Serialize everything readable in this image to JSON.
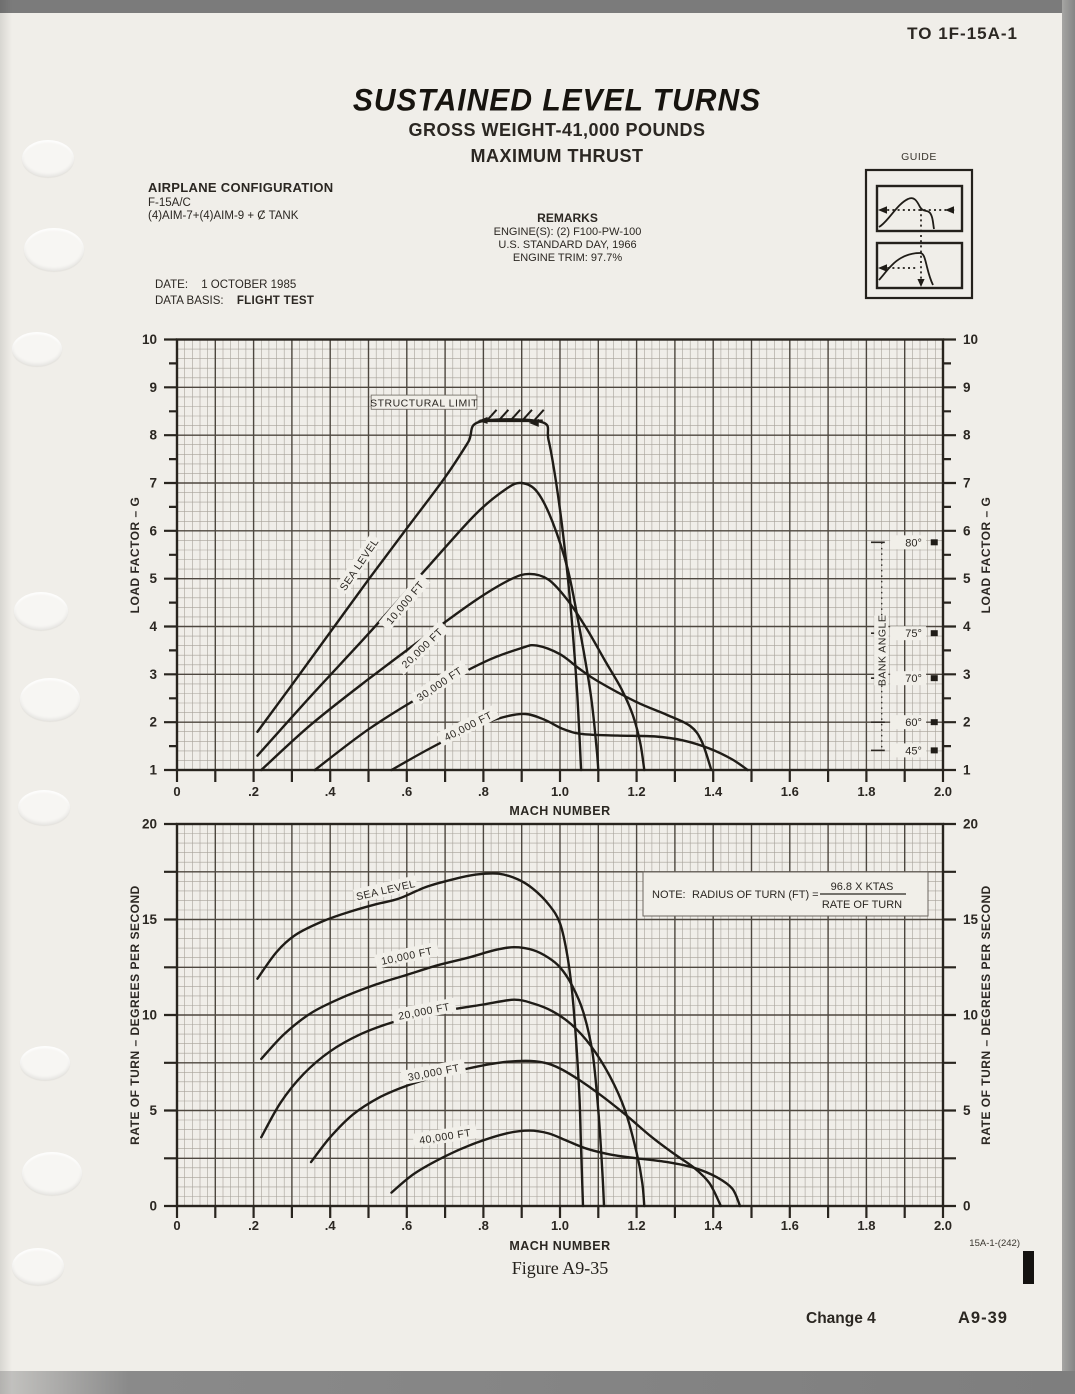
{
  "page": {
    "doc_number": "TO 1F-15A-1",
    "title": "SUSTAINED LEVEL TURNS",
    "subtitle1": "GROSS WEIGHT-41,000 POUNDS",
    "subtitle2": "MAXIMUM THRUST",
    "figure_caption": "Figure A9-35",
    "sheet_number": "15A-1-(242)",
    "change_label": "Change 4",
    "page_number": "A9-39"
  },
  "configuration": {
    "heading": "AIRPLANE CONFIGURATION",
    "aircraft": "F-15A/C",
    "stores": "(4)AIM-7+(4)AIM-9 + Ȼ TANK",
    "date_label": "DATE:",
    "date_value": "1 OCTOBER 1985",
    "data_basis_label": "DATA BASIS:",
    "data_basis_value": "FLIGHT TEST"
  },
  "remarks": {
    "heading": "REMARKS",
    "lines": [
      "ENGINE(S):   (2) F100-PW-100",
      "U.S. STANDARD DAY, 1966",
      "ENGINE TRIM:   97.7%"
    ]
  },
  "guide": {
    "label": "GUIDE"
  },
  "chart_data": [
    {
      "type": "line",
      "title": "Sustained level turns - load factor vs mach number",
      "xlabel": "MACH NUMBER",
      "ylabel": "LOAD FACTOR – G",
      "xlim": [
        0,
        2.0
      ],
      "ylim": [
        1,
        10
      ],
      "x_ticks": [
        0,
        0.2,
        0.4,
        0.6,
        0.8,
        1.0,
        1.2,
        1.4,
        1.6,
        1.8,
        2.0
      ],
      "x_tick_labels": [
        "0",
        ".2",
        ".4",
        ".6",
        ".8",
        "1.0",
        "1.2",
        "1.4",
        "1.6",
        "1.8",
        "2.0"
      ],
      "y_tick_labels": [
        "1",
        "2",
        "3",
        "4",
        "5",
        "6",
        "7",
        "8",
        "9",
        "10"
      ],
      "grid": "graph-paper, minor 0.02 mach / 0.2 g, major 0.1 mach / 1 g",
      "legend_position": "labels on curves",
      "series": [
        {
          "name": "SEA LEVEL",
          "label_at": [
            0.475,
            5.3
          ],
          "label_angle": -56,
          "points": [
            [
              0.21,
              1.8
            ],
            [
              0.3,
              2.78
            ],
            [
              0.4,
              3.88
            ],
            [
              0.5,
              4.98
            ],
            [
              0.6,
              6.05
            ],
            [
              0.7,
              7.12
            ],
            [
              0.76,
              7.85
            ],
            [
              0.79,
              8.28
            ],
            [
              0.95,
              8.28
            ],
            [
              0.97,
              7.9
            ],
            [
              0.99,
              7.0
            ],
            [
              1.01,
              5.8
            ],
            [
              1.03,
              4.2
            ],
            [
              1.045,
              2.6
            ],
            [
              1.055,
              1.0
            ]
          ]
        },
        {
          "name": "10,000 FT",
          "label_at": [
            0.595,
            4.5
          ],
          "label_angle": -50,
          "points": [
            [
              0.21,
              1.3
            ],
            [
              0.35,
              2.55
            ],
            [
              0.5,
              3.85
            ],
            [
              0.65,
              5.2
            ],
            [
              0.78,
              6.35
            ],
            [
              0.86,
              6.88
            ],
            [
              0.9,
              7.0
            ],
            [
              0.94,
              6.82
            ],
            [
              0.98,
              6.2
            ],
            [
              1.02,
              5.2
            ],
            [
              1.05,
              4.0
            ],
            [
              1.08,
              2.6
            ],
            [
              1.095,
              1.5
            ],
            [
              1.1,
              1.0
            ]
          ]
        },
        {
          "name": "20,000 FT",
          "label_at": [
            0.64,
            3.55
          ],
          "label_angle": -44,
          "points": [
            [
              0.22,
              1.0
            ],
            [
              0.35,
              1.95
            ],
            [
              0.5,
              2.9
            ],
            [
              0.65,
              3.8
            ],
            [
              0.78,
              4.55
            ],
            [
              0.87,
              4.98
            ],
            [
              0.92,
              5.1
            ],
            [
              0.97,
              4.98
            ],
            [
              1.02,
              4.55
            ],
            [
              1.07,
              3.95
            ],
            [
              1.12,
              3.25
            ],
            [
              1.16,
              2.7
            ],
            [
              1.19,
              2.15
            ],
            [
              1.21,
              1.55
            ],
            [
              1.22,
              1.0
            ]
          ]
        },
        {
          "name": "30,000 FT",
          "label_at": [
            0.685,
            2.8
          ],
          "label_angle": -34,
          "points": [
            [
              0.36,
              1.0
            ],
            [
              0.5,
              1.85
            ],
            [
              0.65,
              2.6
            ],
            [
              0.8,
              3.25
            ],
            [
              0.9,
              3.55
            ],
            [
              0.94,
              3.6
            ],
            [
              1.0,
              3.42
            ],
            [
              1.05,
              3.12
            ],
            [
              1.1,
              2.85
            ],
            [
              1.2,
              2.42
            ],
            [
              1.28,
              2.15
            ],
            [
              1.34,
              1.92
            ],
            [
              1.37,
              1.6
            ],
            [
              1.395,
              1.0
            ]
          ]
        },
        {
          "name": "40,000 FT",
          "label_at": [
            0.76,
            1.92
          ],
          "label_angle": -27,
          "points": [
            [
              0.56,
              1.0
            ],
            [
              0.66,
              1.45
            ],
            [
              0.76,
              1.85
            ],
            [
              0.85,
              2.1
            ],
            [
              0.91,
              2.17
            ],
            [
              0.96,
              2.05
            ],
            [
              1.01,
              1.85
            ],
            [
              1.06,
              1.75
            ],
            [
              1.15,
              1.72
            ],
            [
              1.25,
              1.7
            ],
            [
              1.32,
              1.62
            ],
            [
              1.39,
              1.45
            ],
            [
              1.45,
              1.22
            ],
            [
              1.49,
              1.0
            ]
          ]
        }
      ],
      "structural_limit": {
        "label": "STRUCTURAL LIMIT",
        "g": 8.3,
        "mach_from": 0.79,
        "mach_to": 0.955,
        "label_at": [
          0.645,
          8.68
        ]
      },
      "bank_angle": {
        "label": "BANK ANGLE",
        "leader_mach": 1.84,
        "label_at": [
          1.84,
          3.5
        ],
        "ticks": [
          {
            "label": "80°",
            "g": 5.76
          },
          {
            "label": "75°",
            "g": 3.86
          },
          {
            "label": "70°",
            "g": 2.92
          },
          {
            "label": "60°",
            "g": 2.0
          },
          {
            "label": "45°",
            "g": 1.41
          }
        ]
      }
    },
    {
      "type": "line",
      "title": "Sustained level turns - rate of turn vs mach number",
      "xlabel": "MACH NUMBER",
      "ylabel": "RATE OF TURN – DEGREES PER SECOND",
      "xlim": [
        0,
        2.0
      ],
      "ylim": [
        0,
        20
      ],
      "x_ticks": [
        0,
        0.2,
        0.4,
        0.6,
        0.8,
        1.0,
        1.2,
        1.4,
        1.6,
        1.8,
        2.0
      ],
      "x_tick_labels": [
        "0",
        ".2",
        ".4",
        ".6",
        ".8",
        "1.0",
        "1.2",
        "1.4",
        "1.6",
        "1.8",
        "2.0"
      ],
      "y_tick_labels": [
        "0",
        "5",
        "10",
        "15",
        "20"
      ],
      "grid": "graph-paper, minor 0.02 mach / 0.5 deg, major 0.1 mach / 2.5 deg",
      "legend_position": "labels on curves",
      "note": {
        "prefix": "NOTE:",
        "lhs": "RADIUS OF TURN (FT) =",
        "numerator": "96.8 X KTAS",
        "denominator": "RATE OF TURN"
      },
      "series": [
        {
          "name": "SEA LEVEL",
          "label_at": [
            0.545,
            16.55
          ],
          "label_angle": -13,
          "points": [
            [
              0.21,
              11.9
            ],
            [
              0.26,
              13.3
            ],
            [
              0.31,
              14.2
            ],
            [
              0.38,
              14.9
            ],
            [
              0.45,
              15.4
            ],
            [
              0.52,
              15.8
            ],
            [
              0.58,
              16.1
            ],
            [
              0.65,
              16.7
            ],
            [
              0.72,
              17.1
            ],
            [
              0.78,
              17.35
            ],
            [
              0.84,
              17.4
            ],
            [
              0.89,
              17.1
            ],
            [
              0.93,
              16.6
            ],
            [
              0.97,
              15.8
            ],
            [
              1.0,
              14.8
            ],
            [
              1.02,
              13.0
            ],
            [
              1.035,
              10.5
            ],
            [
              1.05,
              6.0
            ],
            [
              1.055,
              3.0
            ],
            [
              1.06,
              0
            ]
          ]
        },
        {
          "name": "10,000 FT",
          "label_at": [
            0.6,
            13.1
          ],
          "label_angle": -12,
          "points": [
            [
              0.22,
              7.7
            ],
            [
              0.28,
              9.0
            ],
            [
              0.35,
              10.1
            ],
            [
              0.43,
              10.9
            ],
            [
              0.52,
              11.6
            ],
            [
              0.6,
              12.1
            ],
            [
              0.68,
              12.6
            ],
            [
              0.76,
              13.0
            ],
            [
              0.83,
              13.4
            ],
            [
              0.88,
              13.55
            ],
            [
              0.93,
              13.4
            ],
            [
              0.97,
              13.0
            ],
            [
              1.0,
              12.5
            ],
            [
              1.03,
              11.6
            ],
            [
              1.06,
              10.2
            ],
            [
              1.085,
              8.0
            ],
            [
              1.1,
              5.0
            ],
            [
              1.11,
              2.0
            ],
            [
              1.115,
              0
            ]
          ]
        },
        {
          "name": "20,000 FT",
          "label_at": [
            0.645,
            10.2
          ],
          "label_angle": -11,
          "points": [
            [
              0.22,
              3.6
            ],
            [
              0.27,
              5.4
            ],
            [
              0.33,
              6.9
            ],
            [
              0.4,
              8.1
            ],
            [
              0.48,
              9.0
            ],
            [
              0.56,
              9.6
            ],
            [
              0.64,
              10.0
            ],
            [
              0.72,
              10.3
            ],
            [
              0.8,
              10.55
            ],
            [
              0.88,
              10.8
            ],
            [
              0.93,
              10.6
            ],
            [
              0.98,
              10.2
            ],
            [
              1.03,
              9.5
            ],
            [
              1.08,
              8.4
            ],
            [
              1.13,
              6.8
            ],
            [
              1.17,
              5.0
            ],
            [
              1.2,
              2.8
            ],
            [
              1.215,
              1.2
            ],
            [
              1.22,
              0
            ]
          ]
        },
        {
          "name": "30,000 FT",
          "label_at": [
            0.67,
            7.0
          ],
          "label_angle": -11,
          "points": [
            [
              0.35,
              2.3
            ],
            [
              0.4,
              3.6
            ],
            [
              0.46,
              4.8
            ],
            [
              0.53,
              5.7
            ],
            [
              0.6,
              6.3
            ],
            [
              0.68,
              6.8
            ],
            [
              0.76,
              7.2
            ],
            [
              0.84,
              7.5
            ],
            [
              0.91,
              7.6
            ],
            [
              0.96,
              7.5
            ],
            [
              1.0,
              7.2
            ],
            [
              1.05,
              6.6
            ],
            [
              1.1,
              5.9
            ],
            [
              1.17,
              4.8
            ],
            [
              1.24,
              3.6
            ],
            [
              1.3,
              2.7
            ],
            [
              1.35,
              2.0
            ],
            [
              1.39,
              1.2
            ],
            [
              1.42,
              0
            ]
          ]
        },
        {
          "name": "40,000 FT",
          "label_at": [
            0.7,
            3.65
          ],
          "label_angle": -9,
          "points": [
            [
              0.56,
              0.7
            ],
            [
              0.62,
              1.7
            ],
            [
              0.7,
              2.6
            ],
            [
              0.78,
              3.3
            ],
            [
              0.86,
              3.8
            ],
            [
              0.92,
              3.95
            ],
            [
              0.97,
              3.8
            ],
            [
              1.02,
              3.4
            ],
            [
              1.07,
              3.0
            ],
            [
              1.13,
              2.7
            ],
            [
              1.2,
              2.5
            ],
            [
              1.28,
              2.3
            ],
            [
              1.35,
              2.0
            ],
            [
              1.41,
              1.5
            ],
            [
              1.45,
              0.9
            ],
            [
              1.47,
              0
            ]
          ]
        }
      ]
    }
  ]
}
